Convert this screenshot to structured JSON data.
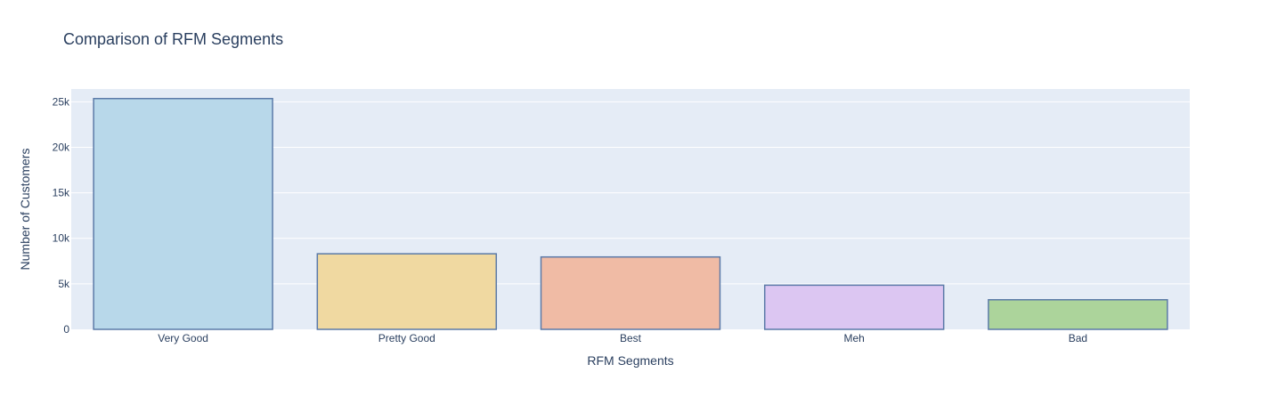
{
  "chart_data": {
    "type": "bar",
    "title": "Comparison of RFM Segments",
    "xlabel": "RFM Segments",
    "ylabel": "Number of Customers",
    "categories": [
      "Very Good",
      "Pretty Good",
      "Best",
      "Meh",
      "Bad"
    ],
    "values": [
      25350,
      8300,
      7950,
      4850,
      3250
    ],
    "ylim": [
      0,
      26400
    ],
    "yticks": [
      0,
      5000,
      10000,
      15000,
      20000,
      25000
    ],
    "ytick_labels": [
      "0",
      "5k",
      "10k",
      "15k",
      "20k",
      "25k"
    ],
    "grid": true,
    "legend": "none",
    "colors": {
      "plot_background": "#e5ecf6",
      "gridline": "#ffffff",
      "bar_outline": "#5b7aa8",
      "text": "#2a3f5f",
      "bars": [
        "#b8d8ea",
        "#f0d9a1",
        "#f0bba5",
        "#dcc6f2",
        "#acd49b"
      ]
    }
  }
}
